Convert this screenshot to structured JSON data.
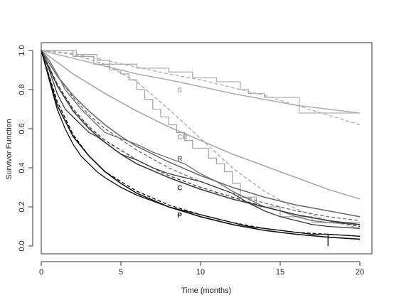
{
  "chart_data": {
    "type": "line",
    "title": "",
    "xlabel": "Time (months)",
    "ylabel": "Survivor Function",
    "xlim": [
      0,
      20
    ],
    "ylim": [
      0,
      1
    ],
    "xticks": [
      0,
      5,
      10,
      15,
      20
    ],
    "yticks": [
      0.0,
      0.2,
      0.4,
      0.6,
      0.8,
      1.0
    ],
    "xtick_labels": [
      "0",
      "5",
      "10",
      "15",
      "20"
    ],
    "ytick_labels": [
      "0.0",
      "0.2",
      "0.4",
      "0.6",
      "0.8",
      "1.0"
    ],
    "grid": false,
    "legend": "none",
    "series": [
      {
        "name": "S",
        "color": "#b0b0b0",
        "label_at": [
          8,
          0.8
        ],
        "km": [
          [
            0,
            1.0
          ],
          [
            2.2,
            1.0
          ],
          [
            2.2,
            0.98
          ],
          [
            3.5,
            0.98
          ],
          [
            3.5,
            0.95
          ],
          [
            4.3,
            0.95
          ],
          [
            4.3,
            0.93
          ],
          [
            6.0,
            0.93
          ],
          [
            6.0,
            0.91
          ],
          [
            8.0,
            0.91
          ],
          [
            8.0,
            0.89
          ],
          [
            9.5,
            0.89
          ],
          [
            9.5,
            0.86
          ],
          [
            11.0,
            0.86
          ],
          [
            11.0,
            0.84
          ],
          [
            12.5,
            0.84
          ],
          [
            12.5,
            0.8
          ],
          [
            13.0,
            0.8
          ],
          [
            13.0,
            0.78
          ],
          [
            14.0,
            0.78
          ],
          [
            14.0,
            0.76
          ],
          [
            16.2,
            0.76
          ],
          [
            16.2,
            0.68
          ],
          [
            20,
            0.68
          ]
        ],
        "fit": [
          [
            0,
            1.0
          ],
          [
            2,
            0.96
          ],
          [
            4,
            0.92
          ],
          [
            6,
            0.88
          ],
          [
            8,
            0.85
          ],
          [
            10,
            0.815
          ],
          [
            12,
            0.78
          ],
          [
            14,
            0.75
          ],
          [
            16,
            0.72
          ],
          [
            18,
            0.7
          ],
          [
            20,
            0.68
          ]
        ],
        "dashed": [
          [
            0,
            1.0
          ],
          [
            2,
            0.985
          ],
          [
            4,
            0.95
          ],
          [
            6,
            0.915
          ],
          [
            8,
            0.88
          ],
          [
            10,
            0.85
          ],
          [
            12,
            0.81
          ],
          [
            14,
            0.77
          ],
          [
            16,
            0.72
          ],
          [
            18,
            0.67
          ],
          [
            20,
            0.62
          ]
        ]
      },
      {
        "name": "CR",
        "color": "#a8a8a8",
        "label_at": [
          8,
          0.56
        ],
        "km": [
          [
            0,
            1.0
          ],
          [
            2.0,
            1.0
          ],
          [
            2.0,
            0.97
          ],
          [
            3.3,
            0.97
          ],
          [
            3.3,
            0.93
          ],
          [
            4.3,
            0.93
          ],
          [
            4.3,
            0.9
          ],
          [
            5.0,
            0.9
          ],
          [
            5.0,
            0.88
          ],
          [
            5.5,
            0.88
          ],
          [
            5.5,
            0.85
          ],
          [
            6.0,
            0.85
          ],
          [
            6.0,
            0.8
          ],
          [
            6.5,
            0.8
          ],
          [
            6.5,
            0.75
          ],
          [
            7.0,
            0.75
          ],
          [
            7.0,
            0.7
          ],
          [
            7.5,
            0.7
          ],
          [
            7.5,
            0.66
          ],
          [
            8.0,
            0.66
          ],
          [
            8.0,
            0.62
          ],
          [
            8.5,
            0.62
          ],
          [
            8.5,
            0.58
          ],
          [
            9.0,
            0.58
          ],
          [
            9.0,
            0.54
          ],
          [
            9.5,
            0.54
          ],
          [
            9.5,
            0.5
          ],
          [
            10.5,
            0.5
          ],
          [
            10.5,
            0.45
          ],
          [
            11.0,
            0.45
          ],
          [
            11.0,
            0.42
          ],
          [
            11.5,
            0.42
          ],
          [
            11.5,
            0.38
          ],
          [
            12.0,
            0.38
          ],
          [
            12.0,
            0.32
          ],
          [
            12.5,
            0.32
          ],
          [
            12.5,
            0.25
          ],
          [
            13.5,
            0.25
          ],
          [
            13.5,
            0.2
          ],
          [
            15.0,
            0.2
          ],
          [
            15.0,
            0.15
          ],
          [
            17.0,
            0.15
          ],
          [
            17.0,
            0.12
          ],
          [
            20,
            0.12
          ]
        ],
        "fit": [
          [
            0,
            1.0
          ],
          [
            2,
            0.88
          ],
          [
            4,
            0.78
          ],
          [
            6,
            0.69
          ],
          [
            8,
            0.61
          ],
          [
            10,
            0.54
          ],
          [
            12,
            0.47
          ],
          [
            14,
            0.41
          ],
          [
            16,
            0.35
          ],
          [
            18,
            0.29
          ],
          [
            20,
            0.24
          ]
        ],
        "dashed": [
          [
            0,
            1.0
          ],
          [
            2,
            0.98
          ],
          [
            4,
            0.93
          ],
          [
            6,
            0.84
          ],
          [
            8,
            0.7
          ],
          [
            10,
            0.55
          ],
          [
            12,
            0.4
          ],
          [
            14,
            0.28
          ],
          [
            16,
            0.19
          ],
          [
            18,
            0.13
          ],
          [
            20,
            0.09
          ]
        ]
      },
      {
        "name": "R",
        "color": "#6e6e6e",
        "label_at": [
          8,
          0.45
        ],
        "km": [
          [
            0,
            1.0
          ],
          [
            0.5,
            0.95
          ],
          [
            1.0,
            0.88
          ],
          [
            1.5,
            0.8
          ],
          [
            2.0,
            0.75
          ],
          [
            2.5,
            0.7
          ],
          [
            3.0,
            0.66
          ],
          [
            3.5,
            0.62
          ],
          [
            4.0,
            0.58
          ],
          [
            5.0,
            0.55
          ],
          [
            6.0,
            0.52
          ],
          [
            7.0,
            0.48
          ],
          [
            8.0,
            0.45
          ],
          [
            9.0,
            0.42
          ],
          [
            10.0,
            0.37
          ],
          [
            11.0,
            0.33
          ],
          [
            12.0,
            0.28
          ],
          [
            13.0,
            0.24
          ],
          [
            14.0,
            0.2
          ],
          [
            15.0,
            0.18
          ],
          [
            16.0,
            0.15
          ],
          [
            17.0,
            0.13
          ],
          [
            18.0,
            0.12
          ],
          [
            20,
            0.11
          ]
        ],
        "fit": [
          [
            0,
            1.0
          ],
          [
            1,
            0.87
          ],
          [
            2,
            0.77
          ],
          [
            3,
            0.69
          ],
          [
            4,
            0.62
          ],
          [
            5,
            0.56
          ],
          [
            6,
            0.51
          ],
          [
            8,
            0.43
          ],
          [
            10,
            0.36
          ],
          [
            12,
            0.3
          ],
          [
            14,
            0.25
          ],
          [
            16,
            0.21
          ],
          [
            18,
            0.18
          ],
          [
            20,
            0.15
          ]
        ],
        "dashed": [
          [
            0,
            1.0
          ],
          [
            1,
            0.87
          ],
          [
            2,
            0.76
          ],
          [
            3,
            0.67
          ],
          [
            4,
            0.6
          ],
          [
            6,
            0.49
          ],
          [
            8,
            0.4
          ],
          [
            10,
            0.33
          ],
          [
            12,
            0.27
          ],
          [
            14,
            0.22
          ],
          [
            16,
            0.18
          ],
          [
            18,
            0.15
          ],
          [
            20,
            0.13
          ]
        ]
      },
      {
        "name": "C",
        "color": "#3c3c3c",
        "label_at": [
          8,
          0.3
        ],
        "km": [
          [
            0,
            1.0
          ],
          [
            0.5,
            0.9
          ],
          [
            1.0,
            0.78
          ],
          [
            1.5,
            0.7
          ],
          [
            2.0,
            0.66
          ],
          [
            2.5,
            0.62
          ],
          [
            3.0,
            0.58
          ],
          [
            3.5,
            0.56
          ],
          [
            4.0,
            0.53
          ],
          [
            5.0,
            0.47
          ],
          [
            6.0,
            0.44
          ],
          [
            7.0,
            0.4
          ],
          [
            8.0,
            0.37
          ],
          [
            9.0,
            0.35
          ],
          [
            10.0,
            0.33
          ],
          [
            11.0,
            0.3
          ],
          [
            12.0,
            0.27
          ],
          [
            13.0,
            0.22
          ],
          [
            14.0,
            0.18
          ],
          [
            15.0,
            0.15
          ],
          [
            16.0,
            0.13
          ],
          [
            17.0,
            0.11
          ],
          [
            18.0,
            0.1
          ],
          [
            20,
            0.09
          ]
        ],
        "fit": [
          [
            0,
            1.0
          ],
          [
            1,
            0.82
          ],
          [
            2,
            0.69
          ],
          [
            3,
            0.6
          ],
          [
            4,
            0.53
          ],
          [
            5,
            0.47
          ],
          [
            6,
            0.42
          ],
          [
            8,
            0.35
          ],
          [
            10,
            0.29
          ],
          [
            12,
            0.24
          ],
          [
            14,
            0.2
          ],
          [
            16,
            0.16
          ],
          [
            18,
            0.13
          ],
          [
            20,
            0.11
          ]
        ],
        "dashed": [
          [
            0,
            1.0
          ],
          [
            1,
            0.83
          ],
          [
            2,
            0.7
          ],
          [
            3,
            0.61
          ],
          [
            4,
            0.54
          ],
          [
            6,
            0.44
          ],
          [
            8,
            0.36
          ],
          [
            10,
            0.3
          ],
          [
            12,
            0.25
          ],
          [
            14,
            0.2
          ],
          [
            16,
            0.16
          ],
          [
            18,
            0.13
          ],
          [
            20,
            0.1
          ]
        ]
      },
      {
        "name": "P",
        "color": "#111111",
        "label_at": [
          8,
          0.16
        ],
        "km": [
          [
            0,
            1.0
          ],
          [
            0.5,
            0.85
          ],
          [
            1.0,
            0.7
          ],
          [
            1.5,
            0.6
          ],
          [
            2.0,
            0.52
          ],
          [
            2.5,
            0.46
          ],
          [
            3.0,
            0.42
          ],
          [
            3.5,
            0.38
          ],
          [
            4.0,
            0.35
          ],
          [
            5.0,
            0.3
          ],
          [
            6.0,
            0.26
          ],
          [
            7.0,
            0.23
          ],
          [
            8.0,
            0.2
          ],
          [
            9.0,
            0.18
          ],
          [
            10.0,
            0.16
          ],
          [
            11.0,
            0.14
          ],
          [
            12.0,
            0.12
          ],
          [
            13.0,
            0.1
          ],
          [
            14.0,
            0.09
          ],
          [
            15.0,
            0.08
          ],
          [
            16.0,
            0.07
          ],
          [
            17.0,
            0.06
          ],
          [
            18.0,
            0.06
          ],
          [
            18.0,
            0.0
          ],
          [
            18.0,
            0.06
          ],
          [
            20,
            0.05
          ]
        ],
        "fit": [
          [
            0,
            1.0
          ],
          [
            1,
            0.72
          ],
          [
            2,
            0.56
          ],
          [
            3,
            0.46
          ],
          [
            4,
            0.38
          ],
          [
            5,
            0.32
          ],
          [
            6,
            0.27
          ],
          [
            8,
            0.2
          ],
          [
            10,
            0.15
          ],
          [
            12,
            0.11
          ],
          [
            14,
            0.08
          ],
          [
            16,
            0.06
          ],
          [
            18,
            0.045
          ],
          [
            20,
            0.035
          ]
        ],
        "dashed": [
          [
            0,
            1.0
          ],
          [
            1,
            0.74
          ],
          [
            2,
            0.57
          ],
          [
            3,
            0.46
          ],
          [
            4,
            0.38
          ],
          [
            6,
            0.28
          ],
          [
            8,
            0.21
          ],
          [
            10,
            0.16
          ],
          [
            12,
            0.12
          ],
          [
            14,
            0.09
          ],
          [
            16,
            0.07
          ],
          [
            18,
            0.06
          ],
          [
            20,
            0.05
          ]
        ]
      }
    ]
  }
}
